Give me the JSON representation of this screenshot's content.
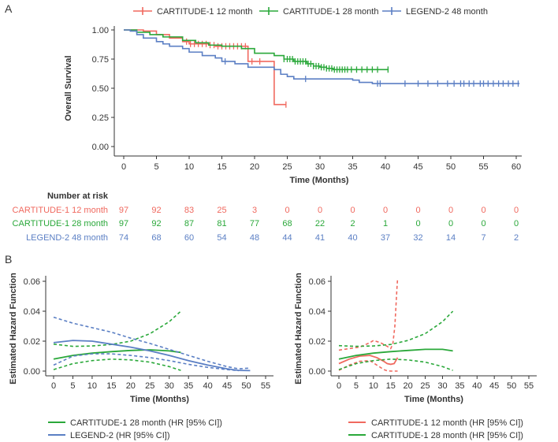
{
  "colors": {
    "red": "#f0695f",
    "green": "#2aa83a",
    "blue": "#5b7fc4",
    "axis": "#333333"
  },
  "panel_labels": [
    "A",
    "B"
  ],
  "chart_data": [
    {
      "id": "km",
      "type": "line",
      "title": "",
      "xlabel": "Time (Months)",
      "ylabel": "Overall Survival",
      "xlim": [
        0,
        60
      ],
      "ylim": [
        0,
        1
      ],
      "xticks": [
        0,
        5,
        10,
        15,
        20,
        25,
        30,
        35,
        40,
        45,
        50,
        55,
        60
      ],
      "yticks": [
        0,
        0.25,
        0.5,
        0.75,
        1
      ],
      "ytick_labels": [
        "0.00",
        "0.25",
        "0.50",
        "0.75",
        "1.00"
      ],
      "legend": [
        "CARTITUDE-1 12 month",
        "CARTITUDE-1 28 month",
        "LEGEND-2 48 month"
      ],
      "legend_position": "top",
      "series": [
        {
          "name": "CARTITUDE-1 12 month",
          "color": "red",
          "steps": [
            [
              0,
              1
            ],
            [
              3,
              0.99
            ],
            [
              5,
              0.96
            ],
            [
              7,
              0.93
            ],
            [
              9,
              0.9
            ],
            [
              10,
              0.88
            ],
            [
              13,
              0.87
            ],
            [
              14,
              0.86
            ],
            [
              19,
              0.73
            ],
            [
              22,
              0.73
            ],
            [
              23,
              0.36
            ],
            [
              24.8,
              0.36
            ]
          ],
          "censor": [
            9.6,
            10.2,
            10.8,
            11.4,
            12,
            12.6,
            13.2,
            13.8,
            14.4,
            15,
            15.6,
            16.2,
            16.8,
            17.4,
            18,
            18.6,
            19.6,
            20.8,
            24.8
          ]
        },
        {
          "name": "CARTITUDE-1 28 month",
          "color": "green",
          "steps": [
            [
              0,
              1
            ],
            [
              2,
              0.98
            ],
            [
              4,
              0.96
            ],
            [
              6,
              0.94
            ],
            [
              9,
              0.91
            ],
            [
              11,
              0.89
            ],
            [
              13,
              0.87
            ],
            [
              15,
              0.86
            ],
            [
              18,
              0.84
            ],
            [
              20,
              0.8
            ],
            [
              23,
              0.78
            ],
            [
              24.5,
              0.75
            ],
            [
              26,
              0.73
            ],
            [
              28,
              0.71
            ],
            [
              29,
              0.69
            ],
            [
              30,
              0.68
            ],
            [
              31,
              0.67
            ],
            [
              32,
              0.66
            ],
            [
              40.5,
              0.66
            ]
          ],
          "censor": [
            24.5,
            25,
            25.4,
            25.8,
            26.2,
            26.6,
            27,
            27.4,
            27.8,
            28.2,
            28.6,
            29,
            29.4,
            29.8,
            30.2,
            30.6,
            31,
            31.4,
            31.8,
            32.2,
            32.6,
            33,
            33.4,
            33.8,
            34.2,
            34.8,
            35.6,
            36.4,
            37.2,
            38,
            38.8,
            40.4
          ]
        },
        {
          "name": "LEGEND-2 48 month",
          "color": "blue",
          "steps": [
            [
              0,
              1
            ],
            [
              1,
              0.99
            ],
            [
              2,
              0.96
            ],
            [
              3,
              0.93
            ],
            [
              5,
              0.9
            ],
            [
              6,
              0.88
            ],
            [
              7,
              0.86
            ],
            [
              9,
              0.84
            ],
            [
              10,
              0.81
            ],
            [
              12,
              0.78
            ],
            [
              14,
              0.76
            ],
            [
              15,
              0.73
            ],
            [
              17,
              0.71
            ],
            [
              19,
              0.68
            ],
            [
              23,
              0.66
            ],
            [
              24,
              0.62
            ],
            [
              25,
              0.6
            ],
            [
              26,
              0.58
            ],
            [
              35,
              0.57
            ],
            [
              36,
              0.55
            ],
            [
              38,
              0.54
            ],
            [
              60.5,
              0.54
            ]
          ],
          "censor": [
            15.5,
            27.8,
            38.8,
            39.2,
            43,
            45,
            46.5,
            48,
            49.5,
            50.5,
            51.5,
            52,
            52.8,
            53.5,
            54.5,
            55,
            55.7,
            56.5,
            57.3,
            58,
            58.8,
            59.5,
            60.3
          ]
        }
      ]
    },
    {
      "id": "risk",
      "type": "table",
      "title": "Number at risk",
      "columns": [
        0,
        5,
        10,
        15,
        20,
        25,
        30,
        35,
        40,
        45,
        50,
        55,
        60
      ],
      "rows": [
        {
          "label": "CARTITUDE-1 12 month",
          "color": "red",
          "values": [
            "97",
            "92",
            "83",
            "25",
            "3",
            "0",
            "0",
            "0",
            "0",
            "0",
            "0",
            "0",
            "0"
          ]
        },
        {
          "label": "CARTITUDE-1 28 month",
          "color": "green",
          "values": [
            "97",
            "92",
            "87",
            "81",
            "77",
            "68",
            "22",
            "2",
            "1",
            "0",
            "0",
            "0",
            "0"
          ]
        },
        {
          "label": "LEGEND-2 48 month",
          "color": "blue",
          "values": [
            "74",
            "68",
            "60",
            "54",
            "48",
            "44",
            "41",
            "40",
            "37",
            "32",
            "14",
            "7",
            "2"
          ]
        }
      ]
    },
    {
      "id": "hazard1",
      "type": "line",
      "xlabel": "Time (Months)",
      "ylabel": "Estimated Hazard Function",
      "xlim": [
        0,
        55
      ],
      "ylim": [
        0,
        0.06
      ],
      "xticks": [
        0,
        5,
        10,
        15,
        20,
        25,
        30,
        35,
        40,
        45,
        50,
        55
      ],
      "yticks": [
        0,
        0.02,
        0.04,
        0.06
      ],
      "ytick_labels": [
        "0.00",
        "0.02",
        "0.04",
        "0.06"
      ],
      "legend": [
        "CARTITUDE-1 28 month (HR [95% CI])",
        "LEGEND-2 (HR [95% CI])"
      ],
      "legend_position": "bottom",
      "series": [
        {
          "name": "CARTITUDE-1 28 month (HR [95% CI])",
          "color": "green",
          "estimate": [
            [
              0,
              0.008
            ],
            [
              5,
              0.0105
            ],
            [
              10,
              0.012
            ],
            [
              15,
              0.013
            ],
            [
              20,
              0.0138
            ],
            [
              25,
              0.0142
            ],
            [
              30,
              0.0135
            ],
            [
              33,
              0.0125
            ]
          ],
          "lower": [
            [
              0,
              0.001
            ],
            [
              5,
              0.005
            ],
            [
              10,
              0.007
            ],
            [
              15,
              0.008
            ],
            [
              20,
              0.0075
            ],
            [
              25,
              0.006
            ],
            [
              30,
              0.003
            ],
            [
              33,
              0.0005
            ]
          ],
          "upper": [
            [
              0,
              0.018
            ],
            [
              5,
              0.0165
            ],
            [
              10,
              0.0168
            ],
            [
              15,
              0.0178
            ],
            [
              20,
              0.02
            ],
            [
              25,
              0.025
            ],
            [
              30,
              0.033
            ],
            [
              33,
              0.04
            ]
          ]
        },
        {
          "name": "LEGEND-2 (HR [95% CI])",
          "color": "blue",
          "estimate": [
            [
              0,
              0.019
            ],
            [
              5,
              0.0205
            ],
            [
              10,
              0.02
            ],
            [
              15,
              0.018
            ],
            [
              20,
              0.016
            ],
            [
              25,
              0.0135
            ],
            [
              30,
              0.0105
            ],
            [
              35,
              0.007
            ],
            [
              40,
              0.004
            ],
            [
              45,
              0.0015
            ],
            [
              48,
              0.0005
            ],
            [
              51,
              0.0003
            ]
          ],
          "lower": [
            [
              0,
              0.004
            ],
            [
              5,
              0.01
            ],
            [
              10,
              0.0115
            ],
            [
              15,
              0.0115
            ],
            [
              20,
              0.0105
            ],
            [
              25,
              0.009
            ],
            [
              30,
              0.007
            ],
            [
              35,
              0.0045
            ],
            [
              40,
              0.0025
            ],
            [
              45,
              0.001
            ],
            [
              48,
              0.0003
            ]
          ],
          "upper": [
            [
              0,
              0.036
            ],
            [
              5,
              0.032
            ],
            [
              10,
              0.029
            ],
            [
              15,
              0.026
            ],
            [
              20,
              0.022
            ],
            [
              25,
              0.0185
            ],
            [
              30,
              0.0145
            ],
            [
              35,
              0.0105
            ],
            [
              40,
              0.0065
            ],
            [
              45,
              0.003
            ],
            [
              48,
              0.0015
            ],
            [
              51,
              0.002
            ]
          ]
        }
      ]
    },
    {
      "id": "hazard2",
      "type": "line",
      "xlabel": "Time (Months)",
      "ylabel": "Estimated Hazard Function",
      "xlim": [
        0,
        55
      ],
      "ylim": [
        0,
        0.06
      ],
      "xticks": [
        0,
        5,
        10,
        15,
        20,
        25,
        30,
        35,
        40,
        45,
        50,
        55
      ],
      "yticks": [
        0,
        0.02,
        0.04,
        0.06
      ],
      "ytick_labels": [
        "0.00",
        "0.02",
        "0.04",
        "0.06"
      ],
      "legend": [
        "CARTITUDE-1 12 month (HR [95% CI])",
        "CARTITUDE-1 28 month (HR [95% CI])"
      ],
      "legend_position": "bottom",
      "series": [
        {
          "name": "CARTITUDE-1 12 month (HR [95% CI])",
          "color": "red",
          "estimate": [
            [
              0,
              0.005
            ],
            [
              3,
              0.008
            ],
            [
              6,
              0.01
            ],
            [
              9,
              0.0105
            ],
            [
              11,
              0.009
            ],
            [
              13,
              0.0065
            ],
            [
              14,
              0.005
            ],
            [
              15,
              0.0045
            ],
            [
              16,
              0.005
            ],
            [
              17,
              0.009
            ]
          ],
          "lower": [
            [
              0,
              0.0005
            ],
            [
              3,
              0.004
            ],
            [
              6,
              0.0065
            ],
            [
              9,
              0.007
            ],
            [
              11,
              0.004
            ],
            [
              13,
              0.001
            ],
            [
              14,
              0.0002
            ],
            [
              15,
              0
            ],
            [
              17,
              0
            ]
          ],
          "upper": [
            [
              0,
              0.014
            ],
            [
              3,
              0.015
            ],
            [
              6,
              0.016
            ],
            [
              9,
              0.019
            ],
            [
              10,
              0.0205
            ],
            [
              12,
              0.019
            ],
            [
              14,
              0.0165
            ],
            [
              15,
              0.015
            ],
            [
              15.6,
              0.018
            ],
            [
              16.2,
              0.03
            ],
            [
              16.8,
              0.055
            ],
            [
              17,
              0.062
            ]
          ]
        },
        {
          "name": "CARTITUDE-1 28 month (HR [95% CI])",
          "color": "green",
          "estimate": [
            [
              0,
              0.008
            ],
            [
              5,
              0.0105
            ],
            [
              10,
              0.012
            ],
            [
              15,
              0.013
            ],
            [
              20,
              0.0138
            ],
            [
              25,
              0.0145
            ],
            [
              30,
              0.0145
            ],
            [
              33,
              0.0135
            ]
          ],
          "lower": [
            [
              0,
              0.001
            ],
            [
              5,
              0.005
            ],
            [
              10,
              0.007
            ],
            [
              15,
              0.008
            ],
            [
              20,
              0.0075
            ],
            [
              25,
              0.006
            ],
            [
              30,
              0.003
            ],
            [
              33,
              0.0005
            ]
          ],
          "upper": [
            [
              0,
              0.017
            ],
            [
              5,
              0.0165
            ],
            [
              10,
              0.0168
            ],
            [
              15,
              0.0178
            ],
            [
              20,
              0.0205
            ],
            [
              25,
              0.025
            ],
            [
              30,
              0.033
            ],
            [
              33,
              0.04
            ]
          ]
        }
      ]
    }
  ]
}
